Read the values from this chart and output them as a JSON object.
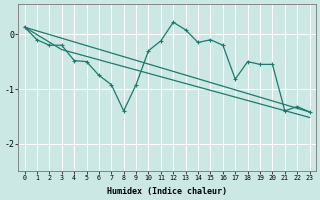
{
  "xlabel": "Humidex (Indice chaleur)",
  "background_color": "#cce8e4",
  "line_color": "#1a7a6e",
  "grid_color": "#ffffff",
  "xlim": [
    -0.5,
    23.5
  ],
  "ylim": [
    -2.5,
    0.55
  ],
  "yticks": [
    0,
    -1,
    -2
  ],
  "xticks": [
    0,
    1,
    2,
    3,
    4,
    5,
    6,
    7,
    8,
    9,
    10,
    11,
    12,
    13,
    14,
    15,
    16,
    17,
    18,
    19,
    20,
    21,
    22,
    23
  ],
  "line1_x": [
    0,
    1,
    2,
    3,
    4,
    5,
    6,
    7,
    8,
    9,
    10,
    11,
    12,
    13,
    14,
    15,
    16,
    17,
    18,
    19,
    20,
    21,
    22,
    23
  ],
  "line1_y": [
    0.13,
    -0.1,
    -0.2,
    -0.2,
    -0.48,
    -0.5,
    -0.75,
    -0.92,
    -1.4,
    -0.92,
    -0.3,
    -0.12,
    0.22,
    0.08,
    -0.15,
    -0.1,
    -0.2,
    -0.82,
    -0.5,
    -0.55,
    -0.55,
    -1.4,
    -1.32,
    -1.42
  ],
  "line2_x": [
    0,
    23
  ],
  "line2_y": [
    0.13,
    -1.42
  ],
  "line3_x": [
    0,
    3,
    23
  ],
  "line3_y": [
    0.13,
    -0.28,
    -1.52
  ],
  "marker": "+"
}
